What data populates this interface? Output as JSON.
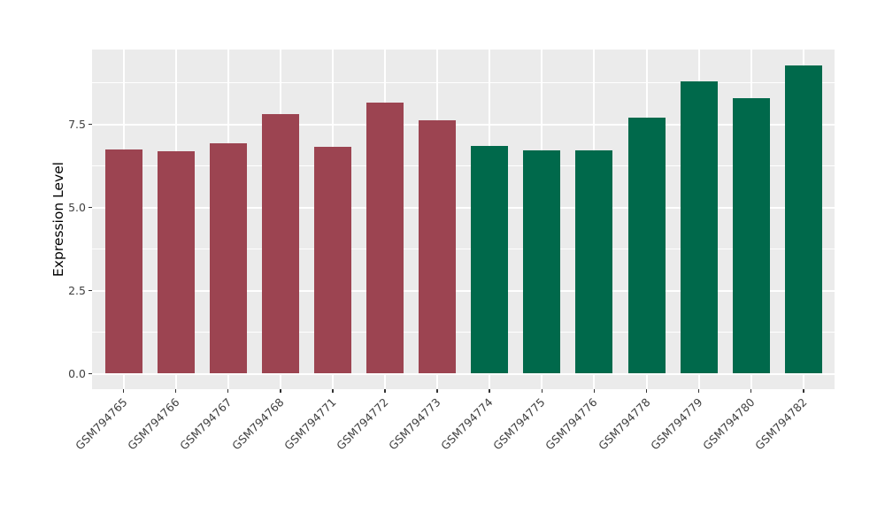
{
  "chart_data": {
    "type": "bar",
    "title": "",
    "xlabel": "",
    "ylabel": "Expression Level",
    "categories": [
      "GSM794765",
      "GSM794766",
      "GSM794767",
      "GSM794768",
      "GSM794771",
      "GSM794772",
      "GSM794773",
      "GSM794774",
      "GSM794775",
      "GSM794776",
      "GSM794778",
      "GSM794779",
      "GSM794780",
      "GSM794782"
    ],
    "values": [
      6.74,
      6.69,
      6.93,
      7.81,
      6.81,
      8.14,
      7.63,
      6.84,
      6.72,
      6.72,
      7.71,
      8.78,
      8.28,
      9.28
    ],
    "bar_colors": [
      "#9C4451",
      "#9C4451",
      "#9C4451",
      "#9C4451",
      "#9C4451",
      "#9C4451",
      "#9C4451",
      "#00694B",
      "#00694B",
      "#00694B",
      "#00694B",
      "#00694B",
      "#00694B",
      "#00694B"
    ],
    "series": [
      {
        "name": "maroon-group",
        "color": "#9C4451",
        "categories": [
          "GSM794765",
          "GSM794766",
          "GSM794767",
          "GSM794768",
          "GSM794771",
          "GSM794772",
          "GSM794773"
        ]
      },
      {
        "name": "green-group",
        "color": "#00694B",
        "categories": [
          "GSM794774",
          "GSM794775",
          "GSM794776",
          "GSM794778",
          "GSM794779",
          "GSM794780",
          "GSM794782"
        ]
      }
    ],
    "yticks": {
      "values": [
        0.0,
        2.5,
        5.0,
        7.5
      ],
      "labels": [
        "0.0",
        "2.5",
        "5.0",
        "7.5"
      ]
    },
    "minor_gridlines": [
      1.25,
      3.75,
      6.25,
      8.75
    ],
    "ylim": [
      -0.49,
      9.75
    ],
    "grid": "white major and minor horizontal lines, white vertical line per category, on grey panel",
    "legend": "none"
  },
  "colors": {
    "page_bg": "#FFFFFF",
    "panel_bg": "#EBEBEB",
    "grid": "#FFFFFF",
    "bar_maroon": "#9C4451",
    "bar_green": "#00694B",
    "axis_text": "#404040",
    "axis_title": "#000000",
    "tick_mark": "#333333"
  }
}
